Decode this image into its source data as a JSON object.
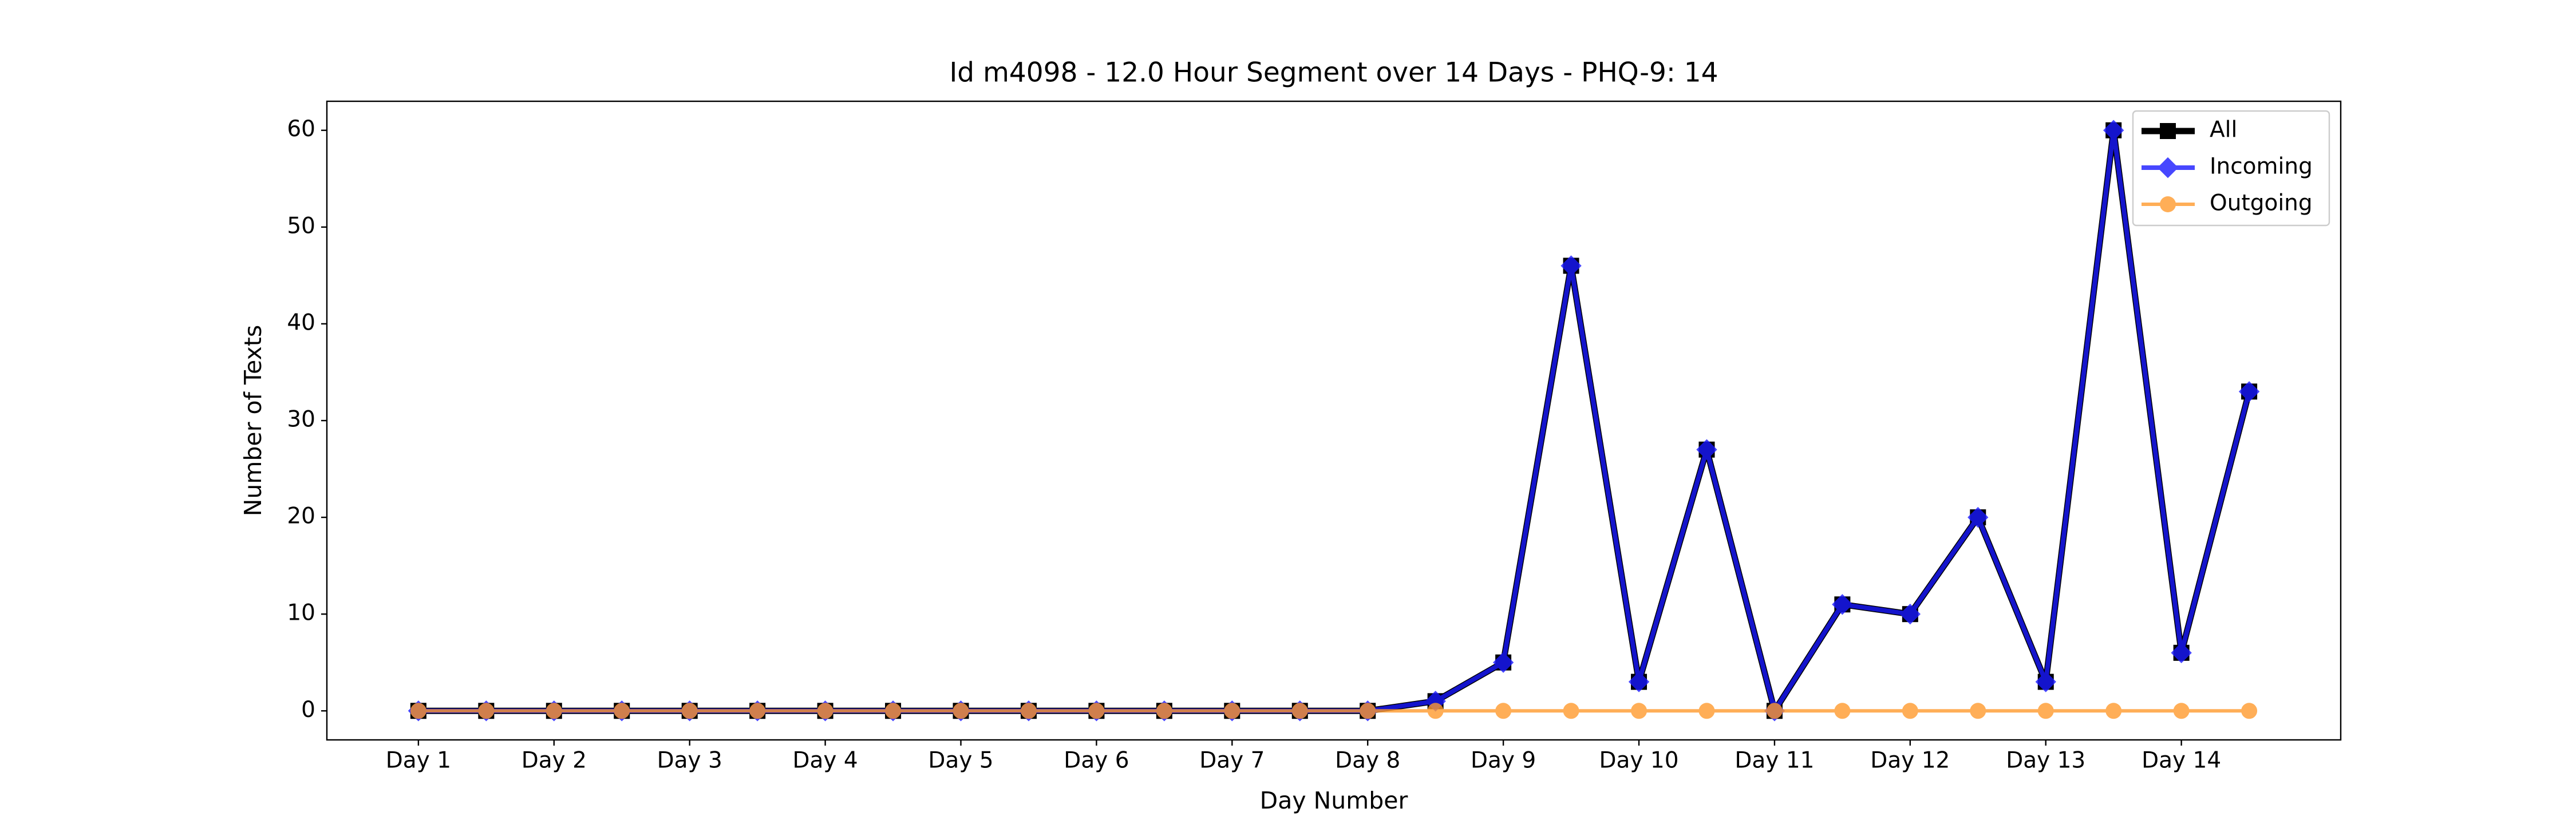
{
  "chart_data": {
    "type": "line",
    "title": "Id m4098 - 12.0 Hour Segment over 14 Days - PHQ-9: 14",
    "xlabel": "Day Number",
    "ylabel": "Number of Texts",
    "categories": [
      "Day 1",
      null,
      "Day 2",
      null,
      "Day 3",
      null,
      "Day 4",
      null,
      "Day 5",
      null,
      "Day 6",
      null,
      "Day 7",
      null,
      "Day 8",
      null,
      "Day 9",
      null,
      "Day 10",
      null,
      "Day 11",
      null,
      "Day 12",
      null,
      "Day 13",
      null,
      "Day 14",
      null
    ],
    "series": [
      {
        "name": "All",
        "color": "#000000",
        "marker": "square",
        "values": [
          0,
          0,
          0,
          0,
          0,
          0,
          0,
          0,
          0,
          0,
          0,
          0,
          0,
          0,
          0,
          1,
          5,
          46,
          3,
          27,
          0,
          11,
          10,
          20,
          3,
          60,
          6,
          33
        ]
      },
      {
        "name": "Incoming",
        "color": "#1a1aff",
        "marker": "diamond",
        "values": [
          0,
          0,
          0,
          0,
          0,
          0,
          0,
          0,
          0,
          0,
          0,
          0,
          0,
          0,
          0,
          1,
          5,
          46,
          3,
          27,
          0,
          11,
          10,
          20,
          3,
          60,
          6,
          33
        ]
      },
      {
        "name": "Outgoing",
        "color": "#ff9a2e",
        "marker": "circle",
        "values": [
          0,
          0,
          0,
          0,
          0,
          0,
          0,
          0,
          0,
          0,
          0,
          0,
          0,
          0,
          0,
          0,
          0,
          0,
          0,
          0,
          0,
          0,
          0,
          0,
          0,
          0,
          0,
          0
        ]
      }
    ],
    "ylim": [
      -3,
      63
    ],
    "yticks": [
      0,
      10,
      20,
      30,
      40,
      50,
      60
    ],
    "grid": false,
    "legend": "upper right"
  }
}
